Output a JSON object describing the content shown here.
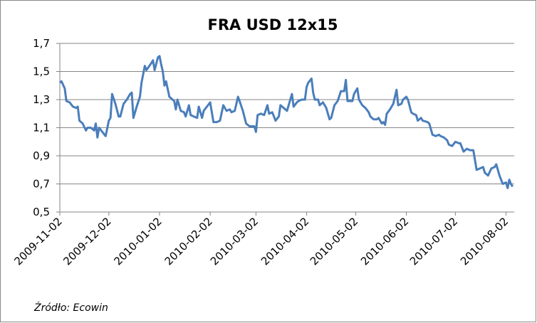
{
  "chart_data": {
    "type": "line",
    "title": "FRA USD 12x15",
    "source": "Źródło: Ecowin",
    "color": "#4a7ebb",
    "grid": true,
    "x": [
      "2009-11-02",
      "2009-11-03",
      "2009-11-05",
      "2009-11-06",
      "2009-11-08",
      "2009-11-10",
      "2009-11-12",
      "2009-11-13",
      "2009-11-14",
      "2009-11-16",
      "2009-11-18",
      "2009-11-19",
      "2009-11-21",
      "2009-11-23",
      "2009-11-24",
      "2009-11-25",
      "2009-11-26",
      "2009-11-28",
      "2009-11-30",
      "2009-12-02",
      "2009-12-03",
      "2009-12-04",
      "2009-12-06",
      "2009-12-08",
      "2009-12-09",
      "2009-12-11",
      "2009-12-13",
      "2009-12-15",
      "2009-12-16",
      "2009-12-17",
      "2009-12-19",
      "2009-12-21",
      "2009-12-22",
      "2009-12-24",
      "2009-12-25",
      "2009-12-28",
      "2009-12-29",
      "2009-12-30",
      "2010-01-01",
      "2010-01-02",
      "2010-01-03",
      "2010-01-04",
      "2010-01-05",
      "2010-01-06",
      "2010-01-08",
      "2010-01-09",
      "2010-01-11",
      "2010-01-12",
      "2010-01-13",
      "2010-01-15",
      "2010-01-17",
      "2010-01-18",
      "2010-01-20",
      "2010-01-21",
      "2010-01-23",
      "2010-01-25",
      "2010-01-26",
      "2010-01-28",
      "2010-01-29",
      "2010-01-31",
      "2010-02-02",
      "2010-02-04",
      "2010-02-06",
      "2010-02-08",
      "2010-02-10",
      "2010-02-12",
      "2010-02-14",
      "2010-02-15",
      "2010-02-17",
      "2010-02-19",
      "2010-02-20",
      "2010-02-22",
      "2010-02-24",
      "2010-02-26",
      "2010-03-01",
      "2010-03-02",
      "2010-03-03",
      "2010-03-05",
      "2010-03-07",
      "2010-03-09",
      "2010-03-10",
      "2010-03-12",
      "2010-03-14",
      "2010-03-16",
      "2010-03-17",
      "2010-03-19",
      "2010-03-21",
      "2010-03-23",
      "2010-03-24",
      "2010-03-25",
      "2010-03-27",
      "2010-03-28",
      "2010-03-30",
      "2010-04-01",
      "2010-04-02",
      "2010-04-03",
      "2010-04-05",
      "2010-04-06",
      "2010-04-07",
      "2010-04-09",
      "2010-04-10",
      "2010-04-12",
      "2010-04-14",
      "2010-04-16",
      "2010-04-17",
      "2010-04-19",
      "2010-04-21",
      "2010-04-23",
      "2010-04-25",
      "2010-04-26",
      "2010-04-27",
      "2010-04-30",
      "2010-05-01",
      "2010-05-03",
      "2010-05-04",
      "2010-05-06",
      "2010-05-08",
      "2010-05-10",
      "2010-05-11",
      "2010-05-13",
      "2010-05-15",
      "2010-05-16",
      "2010-05-18",
      "2010-05-19",
      "2010-05-20",
      "2010-05-21",
      "2010-05-23",
      "2010-05-25",
      "2010-05-27",
      "2010-05-28",
      "2010-05-30",
      "2010-05-31",
      "2010-06-02",
      "2010-06-03",
      "2010-06-05",
      "2010-06-06",
      "2010-06-08",
      "2010-06-09",
      "2010-06-11",
      "2010-06-12",
      "2010-06-15",
      "2010-06-16",
      "2010-06-18",
      "2010-06-20",
      "2010-06-22",
      "2010-06-23",
      "2010-06-25",
      "2010-06-27",
      "2010-06-28",
      "2010-06-30",
      "2010-07-02",
      "2010-07-04",
      "2010-07-05",
      "2010-07-07",
      "2010-07-09",
      "2010-07-11",
      "2010-07-13",
      "2010-07-15",
      "2010-07-17",
      "2010-07-19",
      "2010-07-20",
      "2010-07-22",
      "2010-07-24",
      "2010-07-26",
      "2010-07-27",
      "2010-07-29",
      "2010-07-31",
      "2010-08-02",
      "2010-08-03",
      "2010-08-04",
      "2010-08-05",
      "2010-08-06"
    ],
    "values": [
      1.42,
      1.43,
      1.38,
      1.29,
      1.28,
      1.25,
      1.24,
      1.25,
      1.15,
      1.13,
      1.08,
      1.1,
      1.1,
      1.08,
      1.13,
      1.03,
      1.1,
      1.07,
      1.04,
      1.15,
      1.17,
      1.34,
      1.27,
      1.18,
      1.18,
      1.27,
      1.3,
      1.34,
      1.35,
      1.17,
      1.25,
      1.32,
      1.42,
      1.54,
      1.51,
      1.56,
      1.58,
      1.51,
      1.6,
      1.61,
      1.55,
      1.5,
      1.4,
      1.43,
      1.32,
      1.31,
      1.29,
      1.23,
      1.3,
      1.22,
      1.21,
      1.18,
      1.26,
      1.19,
      1.18,
      1.17,
      1.25,
      1.17,
      1.22,
      1.25,
      1.28,
      1.14,
      1.14,
      1.15,
      1.26,
      1.22,
      1.23,
      1.21,
      1.22,
      1.32,
      1.29,
      1.22,
      1.13,
      1.11,
      1.11,
      1.07,
      1.19,
      1.2,
      1.19,
      1.26,
      1.2,
      1.21,
      1.15,
      1.18,
      1.26,
      1.24,
      1.22,
      1.3,
      1.34,
      1.25,
      1.28,
      1.29,
      1.3,
      1.3,
      1.39,
      1.42,
      1.45,
      1.35,
      1.3,
      1.3,
      1.26,
      1.28,
      1.24,
      1.16,
      1.17,
      1.26,
      1.29,
      1.36,
      1.36,
      1.44,
      1.29,
      1.29,
      1.34,
      1.38,
      1.3,
      1.26,
      1.24,
      1.21,
      1.18,
      1.16,
      1.16,
      1.17,
      1.13,
      1.14,
      1.12,
      1.2,
      1.23,
      1.27,
      1.37,
      1.26,
      1.27,
      1.3,
      1.32,
      1.3,
      1.21,
      1.2,
      1.19,
      1.15,
      1.17,
      1.15,
      1.14,
      1.13,
      1.05,
      1.04,
      1.05,
      1.04,
      1.03,
      1.01,
      0.98,
      0.97,
      1.0,
      0.99,
      0.99,
      0.93,
      0.95,
      0.94,
      0.94,
      0.8,
      0.81,
      0.82,
      0.78,
      0.76,
      0.81,
      0.82,
      0.84,
      0.76,
      0.7,
      0.71,
      0.67,
      0.73,
      0.7,
      0.68
    ],
    "xlim": [
      "2009-11-02",
      "2010-08-07"
    ],
    "xticks": [
      "2009-11-02",
      "2009-12-02",
      "2010-01-02",
      "2010-02-02",
      "2010-03-02",
      "2010-04-02",
      "2010-05-02",
      "2010-06-02",
      "2010-07-02",
      "2010-08-02"
    ],
    "ylim": [
      0.5,
      1.7
    ],
    "yticks": [
      {
        "value": 0.5,
        "label": "0,5"
      },
      {
        "value": 0.7,
        "label": "0,7"
      },
      {
        "value": 0.9,
        "label": "0,9"
      },
      {
        "value": 1.1,
        "label": "1,1"
      },
      {
        "value": 1.3,
        "label": "1,3"
      },
      {
        "value": 1.5,
        "label": "1,5"
      },
      {
        "value": 1.7,
        "label": "1,7"
      }
    ]
  }
}
